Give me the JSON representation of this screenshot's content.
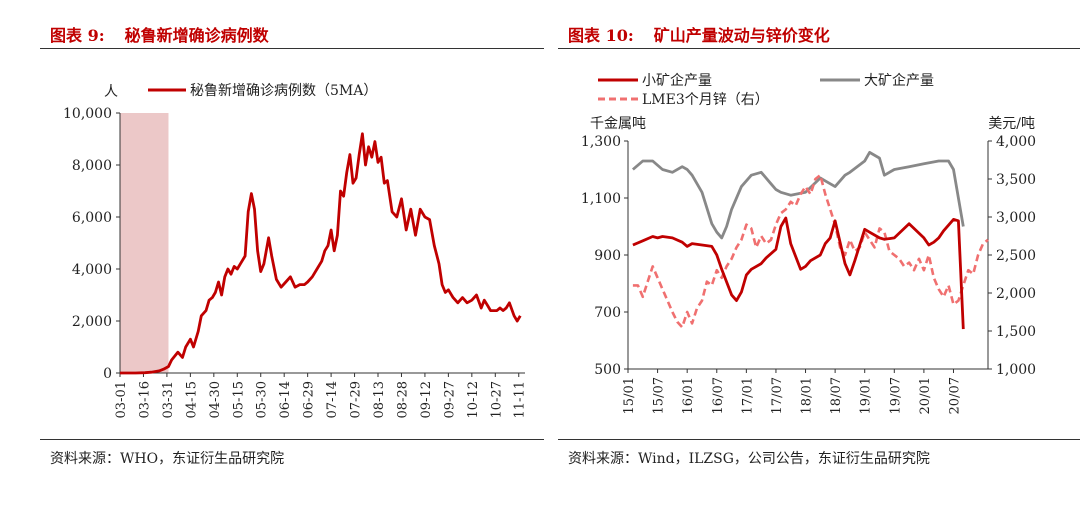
{
  "left": {
    "title_label": "图表 9:",
    "title_text": "秘鲁新增确诊病例数",
    "source": "资料来源：WHO，东证衍生品研究院",
    "chart_data": {
      "type": "line",
      "unit_label": "人",
      "legend": [
        "秘鲁新增确诊病例数（5MA）"
      ],
      "legend_position": "top",
      "ylim": [
        0,
        10000
      ],
      "yticks": [
        0,
        2000,
        4000,
        6000,
        8000,
        10000
      ],
      "ytick_labels": [
        "0",
        "2,000",
        "4,000",
        "6,000",
        "8,000",
        "10,000"
      ],
      "xtick_labels": [
        "03-01",
        "03-16",
        "03-31",
        "04-15",
        "04-30",
        "05-15",
        "05-30",
        "06-14",
        "06-29",
        "07-14",
        "07-29",
        "08-13",
        "08-28",
        "09-12",
        "09-27",
        "10-12",
        "10-27",
        "11-11"
      ],
      "shaded_region": {
        "from_day": 0,
        "to_day": 31
      },
      "color": "#c00000",
      "shade_color": "#ecc8c8",
      "series": [
        {
          "name": "秘鲁新增确诊病例数（5MA）",
          "x_day": [
            0,
            10,
            16,
            20,
            25,
            28,
            31,
            33,
            35,
            37,
            40,
            42,
            45,
            47,
            50,
            52,
            55,
            57,
            59,
            61,
            63,
            65,
            67,
            69,
            71,
            73,
            75,
            77,
            80,
            82,
            84,
            86,
            88,
            90,
            92,
            95,
            97,
            100,
            103,
            106,
            109,
            112,
            115,
            118,
            120,
            123,
            126,
            129,
            131,
            133,
            135,
            137,
            139,
            141,
            143,
            145,
            147,
            149,
            151,
            153,
            155,
            157,
            159,
            161,
            163,
            165,
            167,
            169,
            171,
            174,
            177,
            180,
            183,
            186,
            189,
            192,
            195,
            198,
            201,
            204,
            206,
            208,
            210,
            213,
            216,
            219,
            222,
            225,
            228,
            231,
            233,
            235,
            237,
            239,
            241,
            243,
            245,
            247,
            249,
            252,
            254,
            256
          ],
          "values": [
            0,
            0,
            10,
            30,
            80,
            150,
            250,
            500,
            650,
            800,
            600,
            1000,
            1300,
            1000,
            1600,
            2200,
            2400,
            2800,
            2900,
            3100,
            3500,
            3000,
            3700,
            4000,
            3800,
            4100,
            4000,
            4200,
            4500,
            6200,
            6900,
            6300,
            4700,
            3900,
            4200,
            5200,
            4500,
            3600,
            3300,
            3500,
            3700,
            3300,
            3400,
            3400,
            3500,
            3700,
            4000,
            4300,
            4700,
            4900,
            5500,
            4700,
            5300,
            7000,
            6800,
            7700,
            8400,
            7300,
            7500,
            8400,
            9200,
            8000,
            8700,
            8300,
            8900,
            8100,
            8300,
            7300,
            7400,
            6200,
            6000,
            6700,
            5500,
            6300,
            5300,
            6300,
            6000,
            5900,
            4900,
            4200,
            3400,
            3100,
            3200,
            2900,
            2700,
            2900,
            2700,
            2800,
            3000,
            2500,
            2800,
            2600,
            2400,
            2400,
            2400,
            2500,
            2400,
            2500,
            2700,
            2200,
            2000,
            2200
          ]
        }
      ]
    }
  },
  "right": {
    "title_label": "图表 10:",
    "title_text": "矿山产量波动与锌价变化",
    "source": "资料来源：Wind，ILZSG，公司公告，东证衍生品研究院",
    "chart_data": {
      "type": "line",
      "left_axis_label": "千金属吨",
      "right_axis_label": "美元/吨",
      "left_ylim": [
        500,
        1300
      ],
      "left_yticks": [
        500,
        700,
        900,
        1100,
        1300
      ],
      "left_ytick_labels": [
        "500",
        "700",
        "900",
        "1,100",
        "1,300"
      ],
      "right_ylim": [
        1000,
        4000
      ],
      "right_yticks": [
        1000,
        1500,
        2000,
        2500,
        3000,
        3500,
        4000
      ],
      "right_ytick_labels": [
        "1,000",
        "1,500",
        "2,000",
        "2,500",
        "3,000",
        "3,500",
        "4,000"
      ],
      "xtick_labels": [
        "15/01",
        "15/07",
        "16/01",
        "16/07",
        "17/01",
        "17/07",
        "18/01",
        "18/07",
        "19/01",
        "19/07",
        "20/01",
        "20/07"
      ],
      "legend_position": "top",
      "series": [
        {
          "name": "小矿企产量",
          "axis": "left",
          "color": "#c00000",
          "style": "solid",
          "x_month": [
            1,
            3,
            5,
            6,
            7,
            9,
            11,
            12,
            13,
            15,
            17,
            18,
            19,
            21,
            22,
            23,
            24,
            25,
            27,
            28,
            30,
            31,
            32,
            33,
            35,
            36,
            37,
            39,
            40,
            41,
            42,
            44,
            45,
            46,
            48,
            49,
            51,
            52,
            54,
            57,
            60,
            61,
            62,
            63,
            64,
            66,
            67,
            68
          ],
          "values": [
            935,
            950,
            965,
            960,
            965,
            960,
            945,
            930,
            940,
            935,
            930,
            900,
            850,
            760,
            740,
            770,
            830,
            850,
            870,
            890,
            920,
            1000,
            1030,
            940,
            850,
            860,
            880,
            900,
            940,
            960,
            1020,
            870,
            830,
            880,
            990,
            980,
            960,
            955,
            960,
            1010,
            960,
            935,
            945,
            960,
            985,
            1025,
            1020,
            640
          ]
        },
        {
          "name": "大矿企产量",
          "axis": "left",
          "color": "#888888",
          "style": "solid",
          "x_month": [
            1,
            3,
            5,
            7,
            9,
            11,
            12,
            13,
            15,
            17,
            18,
            19,
            20,
            21,
            23,
            25,
            27,
            29,
            30,
            31,
            33,
            36,
            39,
            40,
            42,
            44,
            45,
            48,
            49,
            51,
            52,
            54,
            57,
            60,
            63,
            65,
            66,
            68
          ],
          "values": [
            1200,
            1230,
            1230,
            1200,
            1190,
            1210,
            1200,
            1180,
            1120,
            1010,
            980,
            960,
            1000,
            1060,
            1140,
            1180,
            1190,
            1150,
            1130,
            1120,
            1110,
            1120,
            1170,
            1160,
            1140,
            1180,
            1190,
            1230,
            1260,
            1240,
            1180,
            1200,
            1210,
            1220,
            1230,
            1230,
            1200,
            1000
          ]
        },
        {
          "name": "LME3个月锌（右）",
          "axis": "right",
          "color": "#f07070",
          "style": "dashed",
          "x_month": [
            1,
            2,
            3,
            4,
            5,
            6,
            7,
            8,
            9,
            10,
            11,
            12,
            13,
            14,
            15,
            16,
            17,
            18,
            19,
            20,
            21,
            22,
            23,
            24,
            25,
            26,
            27,
            28,
            29,
            30,
            31,
            32,
            33,
            34,
            35,
            36,
            37,
            38,
            39,
            40,
            41,
            42,
            43,
            44,
            45,
            46,
            47,
            48,
            49,
            50,
            51,
            52,
            53,
            54,
            55,
            56,
            57,
            58,
            59,
            60,
            61,
            62,
            63,
            64,
            65,
            66,
            67,
            68,
            69,
            70,
            71,
            72,
            73
          ],
          "values": [
            2100,
            2100,
            1950,
            2150,
            2350,
            2200,
            2050,
            1900,
            1750,
            1620,
            1550,
            1750,
            1600,
            1800,
            1900,
            2150,
            2100,
            2300,
            2200,
            2350,
            2450,
            2600,
            2700,
            2900,
            2850,
            2600,
            2750,
            2650,
            2700,
            2900,
            3050,
            3100,
            3200,
            3150,
            3300,
            3400,
            3300,
            3500,
            3550,
            3300,
            3100,
            2900,
            2600,
            2500,
            2700,
            2550,
            2600,
            2800,
            2700,
            2600,
            2850,
            2800,
            2550,
            2500,
            2450,
            2350,
            2400,
            2300,
            2450,
            2300,
            2500,
            2200,
            2050,
            1950,
            2100,
            1850,
            1900,
            2100,
            2300,
            2250,
            2500,
            2650,
            2700
          ]
        }
      ]
    }
  }
}
